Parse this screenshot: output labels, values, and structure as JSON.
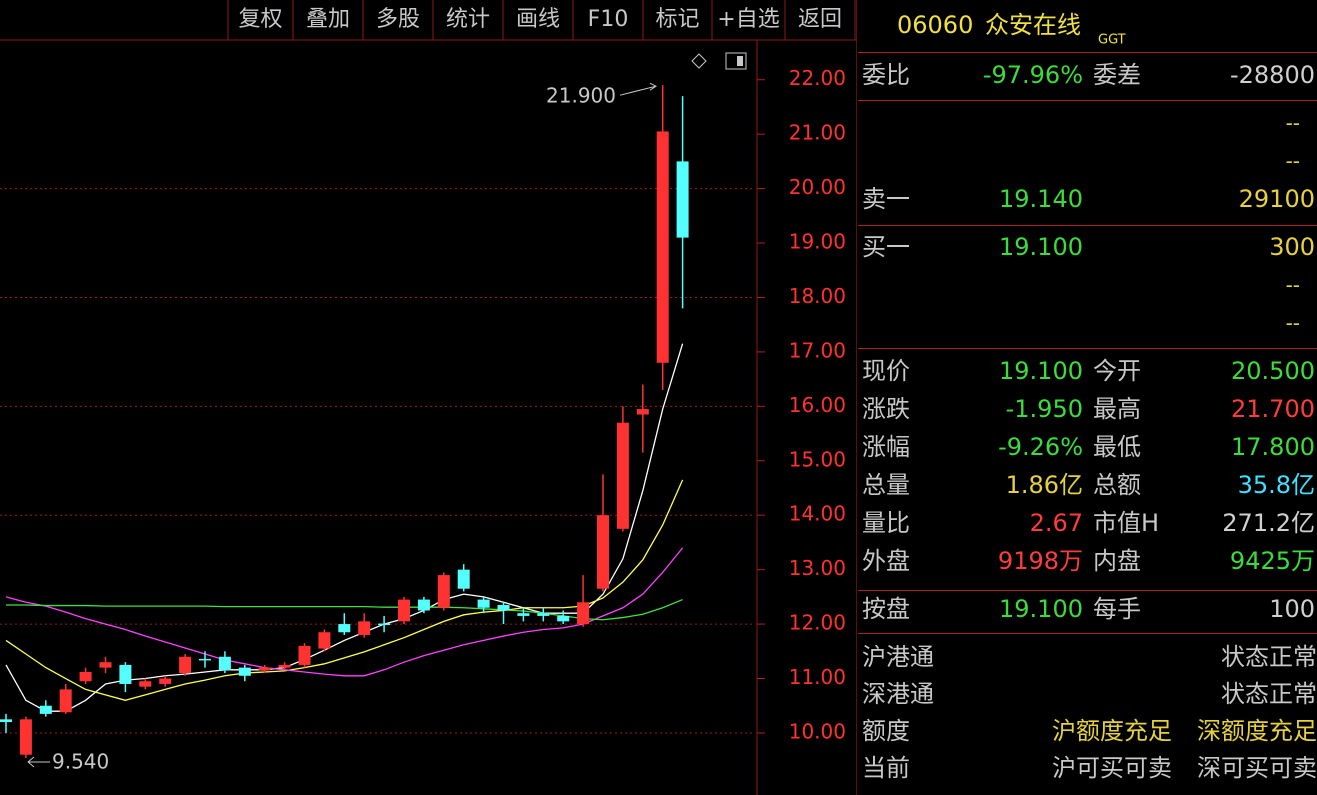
{
  "toolbar": [
    "复权",
    "叠加",
    "多股",
    "统计",
    "画线",
    "F10",
    "标记",
    "+自选",
    "返回"
  ],
  "header": {
    "code": "06060",
    "name": "众安在线",
    "tag": "GGT"
  },
  "chart": {
    "type": "candlestick",
    "ylim": [
      8.86,
      22.73
    ],
    "yticks": [
      {
        "value": 10,
        "label": "10.00"
      },
      {
        "value": 11,
        "label": "11.00"
      },
      {
        "value": 12,
        "label": "12.00"
      },
      {
        "value": 13,
        "label": "13.00"
      },
      {
        "value": 14,
        "label": "14.00"
      },
      {
        "value": 15,
        "label": "15.00"
      },
      {
        "value": 16,
        "label": "16.00"
      },
      {
        "value": 17,
        "label": "17.00"
      },
      {
        "value": 18,
        "label": "18.00"
      },
      {
        "value": 19,
        "label": "19.00"
      },
      {
        "value": 20,
        "label": "20.00"
      },
      {
        "value": 21,
        "label": "21.00"
      },
      {
        "value": 22,
        "label": "22.00"
      }
    ],
    "gridlines": [
      10,
      12,
      14,
      16,
      18,
      20
    ],
    "up_color": "#ff3232",
    "down_color": "#54ffff",
    "annotations": [
      {
        "value": 21.9,
        "label": "21.900"
      },
      {
        "value": 9.54,
        "label": "9.540"
      }
    ],
    "candles": [
      {
        "open": 10.25,
        "high": 10.35,
        "low": 10.0,
        "close": 10.2
      },
      {
        "open": 9.6,
        "high": 10.3,
        "low": 9.54,
        "close": 10.25
      },
      {
        "open": 10.5,
        "high": 10.6,
        "low": 10.3,
        "close": 10.35
      },
      {
        "open": 10.38,
        "high": 10.9,
        "low": 10.35,
        "close": 10.8
      },
      {
        "open": 10.95,
        "high": 11.2,
        "low": 10.9,
        "close": 11.12
      },
      {
        "open": 11.2,
        "high": 11.4,
        "low": 11.1,
        "close": 11.3
      },
      {
        "open": 11.25,
        "high": 11.3,
        "low": 10.75,
        "close": 10.9
      },
      {
        "open": 10.85,
        "high": 11.0,
        "low": 10.8,
        "close": 10.95
      },
      {
        "open": 10.9,
        "high": 11.05,
        "low": 10.85,
        "close": 11.0
      },
      {
        "open": 11.1,
        "high": 11.45,
        "low": 11.05,
        "close": 11.4
      },
      {
        "open": 11.36,
        "high": 11.5,
        "low": 11.2,
        "close": 11.34
      },
      {
        "open": 11.4,
        "high": 11.5,
        "low": 11.1,
        "close": 11.15
      },
      {
        "open": 11.2,
        "high": 11.25,
        "low": 10.95,
        "close": 11.05
      },
      {
        "open": 11.15,
        "high": 11.25,
        "low": 11.1,
        "close": 11.2
      },
      {
        "open": 11.2,
        "high": 11.3,
        "low": 11.15,
        "close": 11.25
      },
      {
        "open": 11.25,
        "high": 11.65,
        "low": 11.2,
        "close": 11.6
      },
      {
        "open": 11.55,
        "high": 11.9,
        "low": 11.5,
        "close": 11.85
      },
      {
        "open": 12.0,
        "high": 12.2,
        "low": 11.8,
        "close": 11.85
      },
      {
        "open": 11.8,
        "high": 12.2,
        "low": 11.75,
        "close": 12.05
      },
      {
        "open": 12.01,
        "high": 12.15,
        "low": 11.85,
        "close": 11.99
      },
      {
        "open": 12.05,
        "high": 12.5,
        "low": 12.0,
        "close": 12.45
      },
      {
        "open": 12.45,
        "high": 12.5,
        "low": 12.2,
        "close": 12.25
      },
      {
        "open": 12.3,
        "high": 12.95,
        "low": 12.25,
        "close": 12.9
      },
      {
        "open": 13.0,
        "high": 13.1,
        "low": 12.6,
        "close": 12.65
      },
      {
        "open": 12.45,
        "high": 12.5,
        "low": 12.2,
        "close": 12.3
      },
      {
        "open": 12.35,
        "high": 12.4,
        "low": 12.0,
        "close": 12.25
      },
      {
        "open": 12.2,
        "high": 12.3,
        "low": 12.05,
        "close": 12.15
      },
      {
        "open": 12.2,
        "high": 12.3,
        "low": 12.05,
        "close": 12.15
      },
      {
        "open": 12.15,
        "high": 12.25,
        "low": 12.0,
        "close": 12.05
      },
      {
        "open": 12.0,
        "high": 12.9,
        "low": 11.95,
        "close": 12.4
      },
      {
        "open": 12.65,
        "high": 14.75,
        "low": 12.6,
        "close": 14.0
      },
      {
        "open": 13.75,
        "high": 16.0,
        "low": 13.7,
        "close": 15.7
      },
      {
        "open": 15.85,
        "high": 16.4,
        "low": 15.15,
        "close": 15.95
      },
      {
        "open": 16.8,
        "high": 21.9,
        "low": 16.3,
        "close": 21.05
      },
      {
        "open": 20.5,
        "high": 21.7,
        "low": 17.8,
        "close": 19.1
      }
    ],
    "series": [
      {
        "color": "#ffffff",
        "values": [
          11.25,
          10.6,
          10.4,
          10.4,
          10.6,
          10.9,
          10.97,
          11.0,
          11.05,
          11.08,
          11.12,
          11.16,
          11.16,
          11.16,
          11.2,
          11.35,
          11.52,
          11.7,
          11.85,
          12.0,
          12.1,
          12.25,
          12.45,
          12.55,
          12.5,
          12.4,
          12.3,
          12.2,
          12.2,
          12.2,
          12.55,
          13.2,
          14.45,
          15.95,
          17.15
        ]
      },
      {
        "color": "#ffff50",
        "values": [
          11.7,
          11.45,
          11.2,
          11.0,
          10.8,
          10.7,
          10.6,
          10.7,
          10.8,
          10.9,
          10.97,
          11.05,
          11.1,
          11.12,
          11.14,
          11.2,
          11.27,
          11.38,
          11.49,
          11.62,
          11.75,
          11.9,
          12.05,
          12.17,
          12.22,
          12.25,
          12.3,
          12.3,
          12.3,
          12.33,
          12.48,
          12.77,
          13.18,
          13.82,
          14.65
        ]
      },
      {
        "color": "#ff40ff",
        "values": [
          12.5,
          12.4,
          12.33,
          12.22,
          12.1,
          12.0,
          11.9,
          11.78,
          11.67,
          11.56,
          11.45,
          11.34,
          11.27,
          11.2,
          11.16,
          11.12,
          11.08,
          11.05,
          11.05,
          11.16,
          11.3,
          11.42,
          11.52,
          11.62,
          11.7,
          11.78,
          11.85,
          11.9,
          11.93,
          12.0,
          12.15,
          12.3,
          12.55,
          12.95,
          13.4
        ]
      },
      {
        "color": "#40e040",
        "values": [
          12.35,
          12.35,
          12.34,
          12.34,
          12.34,
          12.33,
          12.33,
          12.33,
          12.33,
          12.33,
          12.33,
          12.32,
          12.32,
          12.32,
          12.32,
          12.32,
          12.32,
          12.32,
          12.32,
          12.31,
          12.31,
          12.31,
          12.31,
          12.3,
          12.28,
          12.26,
          12.24,
          12.2,
          12.15,
          12.1,
          12.08,
          12.12,
          12.18,
          12.3,
          12.45
        ]
      }
    ]
  },
  "quote": {
    "commission": [
      "委比",
      "-97.96%",
      "委差",
      "-28800"
    ],
    "asks": [
      [
        "--"
      ],
      [
        "--"
      ],
      [
        "卖一",
        "19.140",
        "29100"
      ]
    ],
    "bids": [
      [
        "买一",
        "19.100",
        "300"
      ],
      [
        "--"
      ],
      [
        "--"
      ]
    ],
    "stats": [
      [
        "现价",
        "19.100",
        "今开",
        "20.500"
      ],
      [
        "涨跌",
        "-1.950",
        "最高",
        "21.700"
      ],
      [
        "涨幅",
        "-9.26%",
        "最低",
        "17.800"
      ],
      [
        "总量",
        "1.86亿",
        "总额",
        "35.8亿"
      ],
      [
        "量比",
        "2.67",
        "市值H",
        "271.2亿"
      ],
      [
        "外盘",
        "9198万",
        "内盘",
        "9425万"
      ]
    ],
    "close": [
      "按盘",
      "19.100",
      "每手",
      "100"
    ],
    "connect": [
      [
        "沪港通",
        "状态正常"
      ],
      [
        "深港通",
        "状态正常"
      ],
      [
        "额度",
        "沪额度充足",
        "深额度充足"
      ],
      [
        "当前",
        "沪可买可卖",
        "深可买可卖"
      ]
    ]
  }
}
